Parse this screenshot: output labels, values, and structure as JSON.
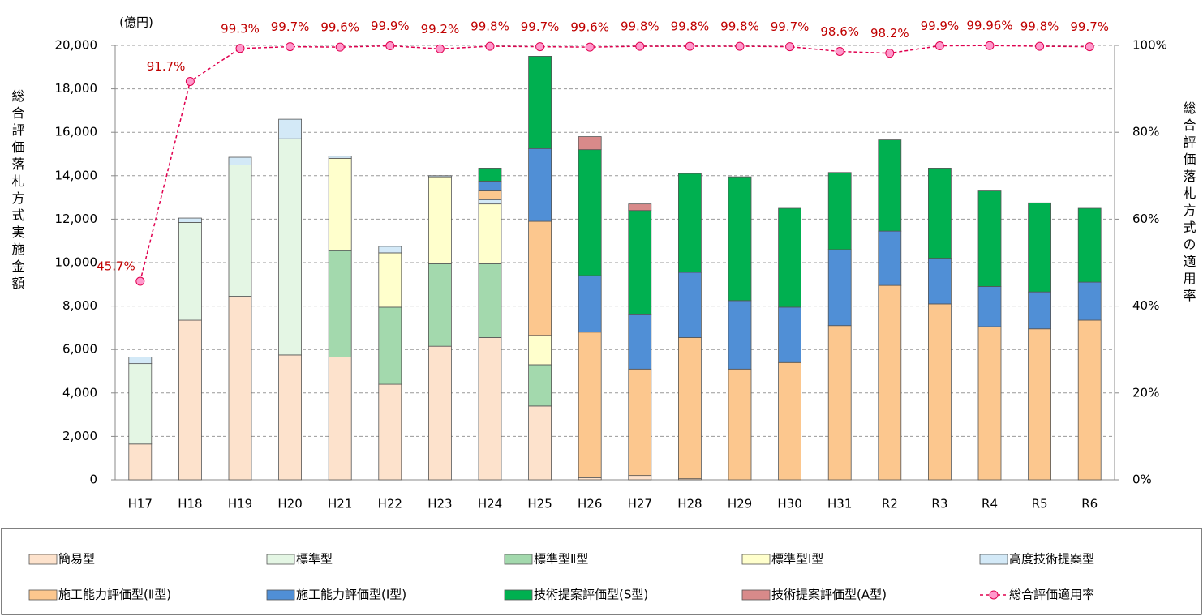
{
  "chart_data": {
    "type": "bar",
    "y_label": "総合評価落札方式実施金額",
    "y_unit": "(億円)",
    "y2_label": "総合評価落札方式の適用率",
    "categories": [
      "H17",
      "H18",
      "H19",
      "H20",
      "H21",
      "H22",
      "H23",
      "H24",
      "H25",
      "H26",
      "H27",
      "H28",
      "H29",
      "H30",
      "H31",
      "R2",
      "R3",
      "R4",
      "R5",
      "R6"
    ],
    "ylim": [
      0,
      20000
    ],
    "yticks": [
      0,
      {
        "value": 2000,
        "label": "2,000"
      },
      {
        "value": 4000,
        "label": "4,000"
      },
      {
        "value": 6000,
        "label": "6,000"
      },
      {
        "value": 8000,
        "label": "8,000"
      },
      {
        "value": 10000,
        "label": "10,000"
      },
      {
        "value": 12000,
        "label": "12,000"
      },
      {
        "value": 14000,
        "label": "14,000"
      },
      {
        "value": 16000,
        "label": "16,000"
      },
      {
        "value": 18000,
        "label": "18,000"
      },
      {
        "value": 20000,
        "label": "20,000"
      }
    ],
    "y2lim": [
      0,
      100
    ],
    "y2ticks": [
      {
        "value": 0,
        "label": "0%"
      },
      {
        "value": 20,
        "label": "20%"
      },
      {
        "value": 40,
        "label": "40%"
      },
      {
        "value": 60,
        "label": "60%"
      },
      {
        "value": 80,
        "label": "80%"
      },
      {
        "value": 100,
        "label": "100%"
      }
    ],
    "grid": true,
    "series": [
      {
        "name": "簡易型",
        "color": "#fde2cc",
        "values": [
          1650,
          7350,
          8450,
          5750,
          5650,
          4400,
          6150,
          6550,
          3400,
          100,
          200,
          50,
          null,
          null,
          null,
          null,
          null,
          null,
          null,
          null
        ]
      },
      {
        "name": "標準型",
        "color": "#e4f6e4",
        "values": [
          3700,
          4500,
          6050,
          9950,
          null,
          null,
          null,
          null,
          null,
          null,
          null,
          null,
          null,
          null,
          null,
          null,
          null,
          null,
          null,
          null
        ]
      },
      {
        "name": "標準型Ⅱ型",
        "color": "#a3d9ad",
        "values": [
          null,
          null,
          null,
          null,
          4900,
          3550,
          3800,
          3400,
          1900,
          null,
          null,
          null,
          null,
          null,
          null,
          null,
          null,
          null,
          null,
          null
        ]
      },
      {
        "name": "標準型Ⅰ型",
        "color": "#ffffcc",
        "values": [
          null,
          null,
          null,
          null,
          4250,
          2500,
          4000,
          2750,
          1350,
          null,
          null,
          null,
          null,
          null,
          null,
          null,
          null,
          null,
          null,
          null
        ]
      },
      {
        "name": "高度技術提案型",
        "color": "#d3e9f7",
        "values": [
          300,
          200,
          350,
          900,
          100,
          300,
          50,
          200,
          null,
          null,
          null,
          null,
          null,
          null,
          null,
          null,
          null,
          null,
          null,
          null
        ]
      },
      {
        "name": "施工能力評価型(Ⅱ型)",
        "color": "#fcc78e",
        "values": [
          null,
          null,
          null,
          null,
          null,
          null,
          null,
          400,
          5250,
          6700,
          4900,
          6500,
          5100,
          5400,
          7100,
          8950,
          8100,
          7050,
          6950,
          7350
        ]
      },
      {
        "name": "施工能力評価型(Ⅰ型)",
        "color": "#508fd6",
        "values": [
          null,
          null,
          null,
          null,
          null,
          null,
          null,
          450,
          3350,
          2600,
          2500,
          3000,
          3150,
          2550,
          3500,
          2500,
          2100,
          1850,
          1700,
          1750
        ]
      },
      {
        "name": "技術提案評価型(S型)",
        "color": "#00b050",
        "values": [
          null,
          null,
          null,
          null,
          null,
          null,
          null,
          600,
          4250,
          5800,
          4800,
          4550,
          5700,
          4550,
          3550,
          4200,
          4150,
          4400,
          4100,
          3400
        ]
      },
      {
        "name": "技術提案評価型(A型)",
        "color": "#d88a8a",
        "values": [
          null,
          null,
          null,
          null,
          null,
          null,
          null,
          null,
          null,
          600,
          300,
          null,
          null,
          null,
          null,
          null,
          null,
          null,
          null,
          null
        ]
      },
      {
        "name": "総合評価適用率",
        "type": "line",
        "axis": "y2",
        "color": "#e0004f",
        "marker_color": "#ff99cc",
        "values": [
          45.7,
          91.7,
          99.3,
          99.7,
          99.6,
          99.9,
          99.2,
          99.8,
          99.7,
          99.6,
          99.8,
          99.8,
          99.8,
          99.7,
          98.6,
          98.2,
          99.9,
          99.96,
          99.8,
          99.7
        ],
        "value_labels": [
          "45.7%",
          "91.7%",
          "99.3%",
          "99.7%",
          "99.6%",
          "99.9%",
          "99.2%",
          "99.8%",
          "99.7%",
          "99.6%",
          "99.8%",
          "99.8%",
          "99.8%",
          "99.7%",
          "98.6%",
          "98.2%",
          "99.9%",
          "99.96%",
          "99.8%",
          "99.7%"
        ]
      }
    ]
  }
}
